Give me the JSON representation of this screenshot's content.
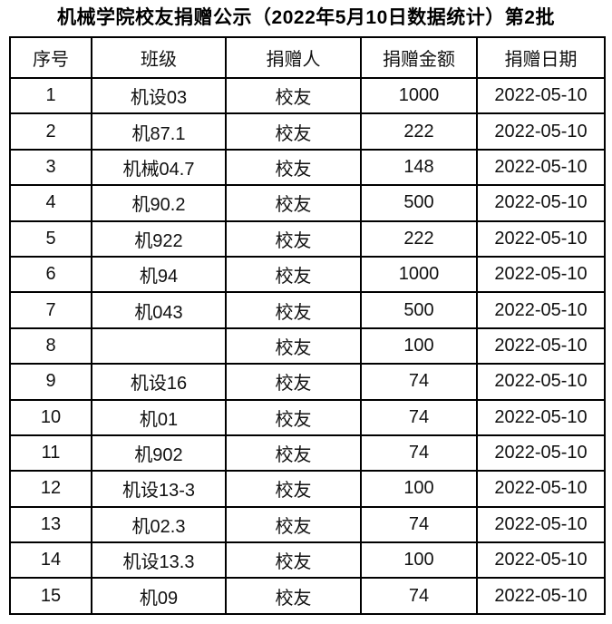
{
  "page": {
    "title": "机械学院校友捐赠公示（2022年5月10日数据统计）第2批"
  },
  "table": {
    "headers": [
      "序号",
      "班级",
      "捐赠人",
      "捐赠金额",
      "捐赠日期"
    ],
    "rows": [
      [
        "1",
        "机设03",
        "校友",
        "1000",
        "2022-05-10"
      ],
      [
        "2",
        "机87.1",
        "校友",
        "222",
        "2022-05-10"
      ],
      [
        "3",
        "机械04.7",
        "校友",
        "148",
        "2022-05-10"
      ],
      [
        "4",
        "机90.2",
        "校友",
        "500",
        "2022-05-10"
      ],
      [
        "5",
        "机922",
        "校友",
        "222",
        "2022-05-10"
      ],
      [
        "6",
        "机94",
        "校友",
        "1000",
        "2022-05-10"
      ],
      [
        "7",
        "机043",
        "校友",
        "500",
        "2022-05-10"
      ],
      [
        "8",
        "",
        "校友",
        "100",
        "2022-05-10"
      ],
      [
        "9",
        "机设16",
        "校友",
        "74",
        "2022-05-10"
      ],
      [
        "10",
        "机01",
        "校友",
        "74",
        "2022-05-10"
      ],
      [
        "11",
        "机902",
        "校友",
        "74",
        "2022-05-10"
      ],
      [
        "12",
        "机设13-3",
        "校友",
        "100",
        "2022-05-10"
      ],
      [
        "13",
        "机02.3",
        "校友",
        "74",
        "2022-05-10"
      ],
      [
        "14",
        "机设13.3",
        "校友",
        "100",
        "2022-05-10"
      ],
      [
        "15",
        "机09",
        "校友",
        "74",
        "2022-05-10"
      ]
    ],
    "colors": {
      "border": "#000000",
      "text": "#111111",
      "background": "#ffffff"
    }
  }
}
